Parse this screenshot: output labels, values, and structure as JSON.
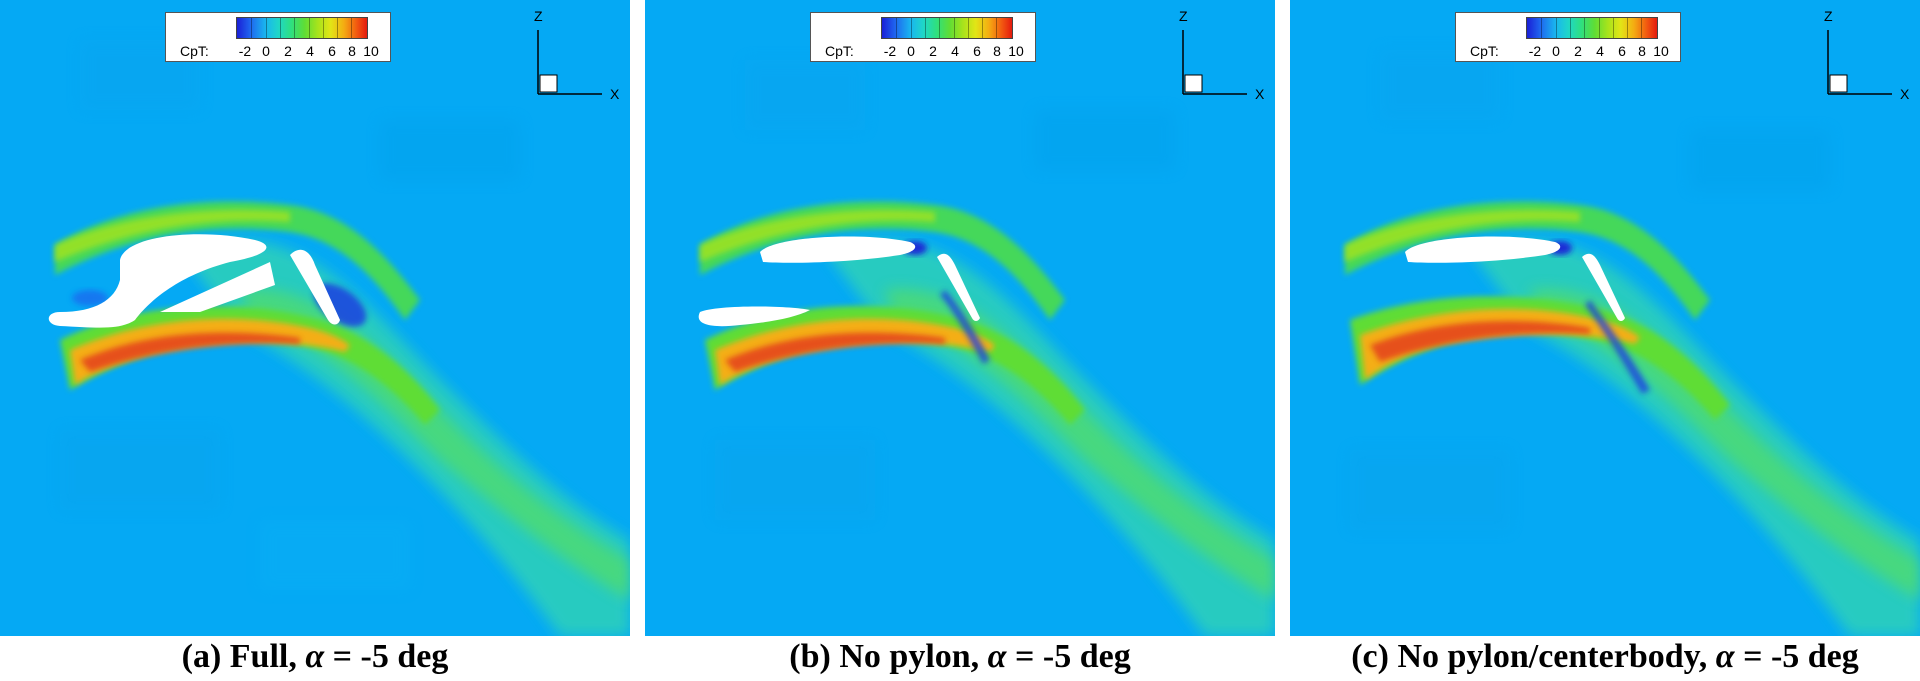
{
  "legend": {
    "label": "CpT:",
    "ticks": [
      "-2",
      "0",
      "2",
      "4",
      "6",
      "8",
      "10"
    ]
  },
  "axes": {
    "z": "Z",
    "x": "X"
  },
  "panels": [
    {
      "caption_prefix": "(a) Full, ",
      "alpha_symbol": "α",
      "caption_suffix": " = -5 deg"
    },
    {
      "caption_prefix": "(b) No pylon, ",
      "alpha_symbol": "α",
      "caption_suffix": " = -5 deg"
    },
    {
      "caption_prefix": "(c) No pylon/centerbody, ",
      "alpha_symbol": "α",
      "caption_suffix": " = -5 deg"
    }
  ],
  "colors": {
    "background_field": "#04a8f4",
    "low": "#1a1fd6",
    "mid": "#2fe07e",
    "high": "#e41a0e"
  }
}
